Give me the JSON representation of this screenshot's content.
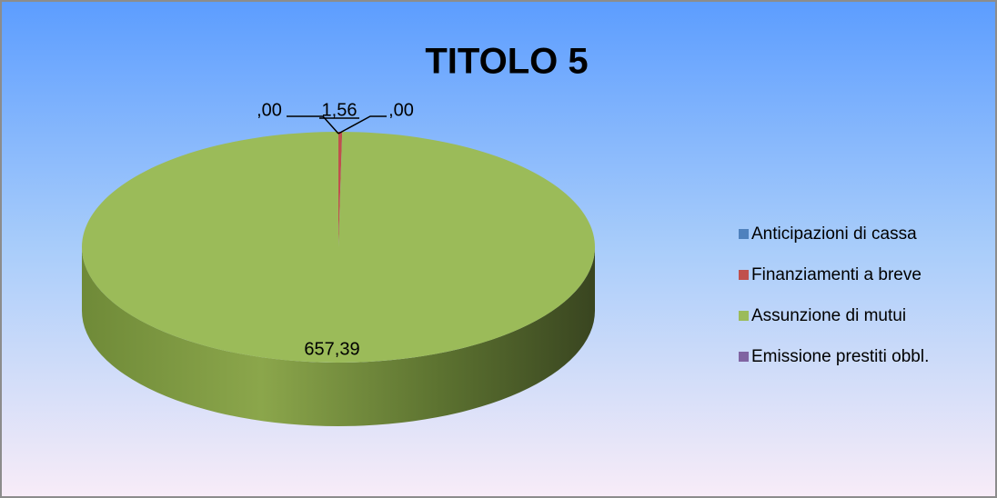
{
  "chart_data": {
    "type": "pie",
    "title": "TITOLO 5",
    "categories": [
      "Anticipazioni  di cassa",
      "Finanziamenti a breve",
      "Assunzione di mutui",
      "Emissione  prestiti obbl."
    ],
    "values": [
      0,
      1.56,
      657.39,
      0
    ],
    "value_labels": [
      ",00",
      "1,56",
      "657,39",
      ",00"
    ],
    "colors": [
      "#4f81bd",
      "#c0504d",
      "#9bbb59",
      "#8064a2"
    ],
    "legend": "right"
  }
}
